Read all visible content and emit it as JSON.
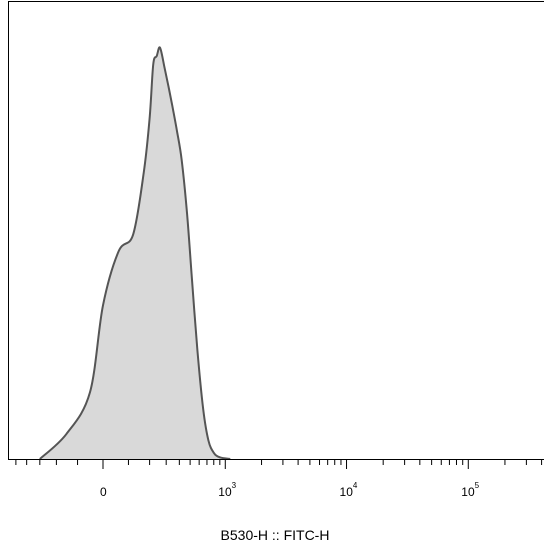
{
  "chart_data": {
    "type": "area",
    "title": "",
    "xlabel": "B530-H :: FITC-H",
    "ylabel": "",
    "x_scale": "biexponential",
    "xlim": [
      -600,
      300000
    ],
    "ylim": [
      0,
      1.1
    ],
    "grid": false,
    "legend": "none",
    "fill_color": "#d9d9d9",
    "line_color": "#555555",
    "x_tick_labels": [
      {
        "value": 0,
        "base": "0",
        "exp": ""
      },
      {
        "value": 1000,
        "base": "10",
        "exp": "3"
      },
      {
        "value": 10000,
        "base": "10",
        "exp": "4"
      },
      {
        "value": 100000,
        "base": "10",
        "exp": "5"
      }
    ],
    "series": [
      {
        "x": [
          -300,
          -150,
          -50,
          0,
          60,
          120,
          170,
          200,
          220,
          240,
          260,
          290,
          320,
          350,
          380,
          420,
          470,
          520,
          580,
          650,
          720,
          800,
          900,
          1100
        ],
        "y": [
          0.0,
          0.06,
          0.16,
          0.37,
          0.5,
          0.54,
          0.69,
          0.82,
          0.95,
          0.97,
          0.99,
          0.94,
          0.89,
          0.84,
          0.79,
          0.72,
          0.59,
          0.43,
          0.26,
          0.12,
          0.045,
          0.015,
          0.004,
          0.0
        ]
      }
    ]
  }
}
